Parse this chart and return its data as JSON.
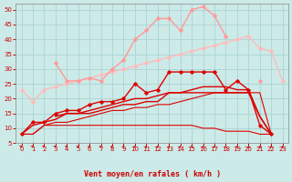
{
  "x": [
    0,
    1,
    2,
    3,
    4,
    5,
    6,
    7,
    8,
    9,
    10,
    11,
    12,
    13,
    14,
    15,
    16,
    17,
    18,
    19,
    20,
    21,
    22,
    23
  ],
  "bg_color": "#cceae8",
  "grid_color": "#aad4d2",
  "xlabel": "Vent moyen/en rafales ( km/h )",
  "xlabel_color": "#cc0000",
  "tick_color": "#cc0000",
  "ylim": [
    5,
    52
  ],
  "xlim": [
    -0.5,
    23.5
  ],
  "yticks": [
    5,
    10,
    15,
    20,
    25,
    30,
    35,
    40,
    45,
    50
  ],
  "xticks": [
    0,
    1,
    2,
    3,
    4,
    5,
    6,
    7,
    8,
    9,
    10,
    11,
    12,
    13,
    14,
    15,
    16,
    17,
    18,
    19,
    20,
    21,
    22,
    23
  ],
  "series": [
    {
      "y": [
        23,
        19,
        23,
        24,
        25,
        26,
        27,
        28,
        29,
        30,
        31,
        32,
        33,
        34,
        35,
        36,
        37,
        38,
        39,
        40,
        41,
        37,
        36,
        26
      ],
      "color": "#ffbbbb",
      "lw": 1.0,
      "marker": "D",
      "ms": 1.8
    },
    {
      "y": [
        null,
        null,
        null,
        32,
        26,
        26,
        27,
        26,
        30,
        33,
        40,
        43,
        47,
        47,
        43,
        50,
        51,
        48,
        41,
        null,
        null,
        26,
        null,
        null
      ],
      "color": "#ff9999",
      "lw": 1.0,
      "marker": "D",
      "ms": 1.8
    },
    {
      "y": [
        8,
        12,
        12,
        15,
        16,
        16,
        18,
        19,
        19,
        20,
        25,
        22,
        23,
        29,
        29,
        29,
        29,
        29,
        23,
        26,
        23,
        11,
        8,
        null
      ],
      "color": "#dd0000",
      "lw": 1.0,
      "marker": "D",
      "ms": 1.8
    },
    {
      "y": [
        8,
        11,
        12,
        13,
        15,
        15,
        16,
        17,
        18,
        19,
        20,
        20,
        21,
        22,
        22,
        23,
        24,
        24,
        24,
        23,
        23,
        14,
        8,
        null
      ],
      "color": "#dd0000",
      "lw": 1.0,
      "marker": null,
      "ms": 0
    },
    {
      "y": [
        null,
        null,
        null,
        14,
        15,
        15,
        15,
        16,
        17,
        18,
        18,
        19,
        19,
        22,
        22,
        22,
        22,
        22,
        22,
        22,
        22,
        14,
        8,
        null
      ],
      "color": "#dd0000",
      "lw": 1.0,
      "marker": null,
      "ms": 0
    },
    {
      "y": [
        8,
        8,
        11,
        12,
        12,
        13,
        14,
        15,
        16,
        16,
        17,
        17,
        18,
        18,
        19,
        20,
        21,
        22,
        22,
        22,
        22,
        22,
        8,
        null
      ],
      "color": "#dd0000",
      "lw": 0.8,
      "marker": null,
      "ms": 0
    },
    {
      "y": [
        8,
        8,
        11,
        11,
        11,
        11,
        11,
        11,
        11,
        11,
        11,
        11,
        11,
        11,
        11,
        11,
        10,
        10,
        9,
        9,
        9,
        8,
        8,
        null
      ],
      "color": "#dd0000",
      "lw": 0.8,
      "marker": null,
      "ms": 0
    }
  ],
  "arrow_angles_deg": [
    50,
    47,
    44,
    41,
    38,
    35,
    32,
    29,
    26,
    23,
    20,
    18,
    16,
    14,
    12,
    10,
    8,
    6,
    4,
    2,
    0,
    0,
    0,
    0
  ]
}
